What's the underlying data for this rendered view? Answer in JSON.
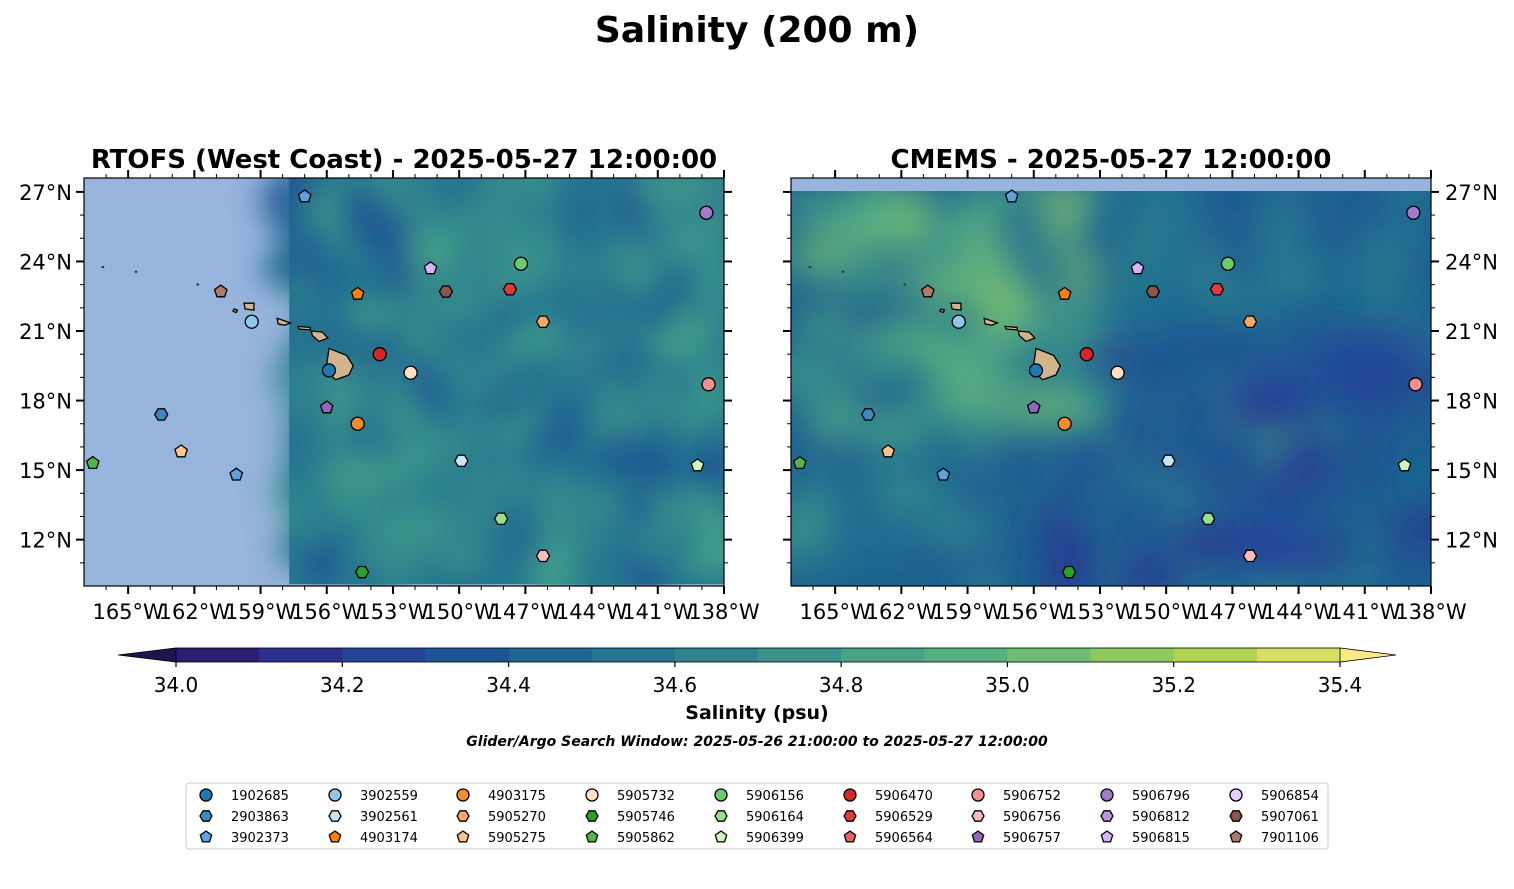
{
  "title": "Salinity (200 m)",
  "panels": [
    {
      "title": "RTOFS (West Coast) - 2025-05-27 12:00:00",
      "coverage_lon_min": -157.7
    },
    {
      "title": "CMEMS - 2025-05-27 12:00:00",
      "coverage_lat_max": 27.0
    }
  ],
  "map": {
    "lon_range": [
      -167,
      -138
    ],
    "lat_range": [
      10,
      27.6
    ],
    "x_ticks": [
      -165,
      -162,
      -159,
      -156,
      -153,
      -150,
      -147,
      -144,
      -141,
      -138
    ],
    "x_tick_labels": [
      "165°W",
      "162°W",
      "159°W",
      "156°W",
      "153°W",
      "150°W",
      "147°W",
      "144°W",
      "141°W",
      "138°W"
    ],
    "y_ticks": [
      27,
      24,
      21,
      18,
      15,
      12
    ],
    "y_tick_labels": [
      "27°N",
      "24°N",
      "21°N",
      "18°N",
      "15°N",
      "12°N"
    ],
    "nodata_color": "#97b4dd",
    "land_color": "#d2b48c"
  },
  "colorbar": {
    "label": "Salinity (psu)",
    "ticks": [
      "34.0",
      "34.2",
      "34.4",
      "34.6",
      "34.8",
      "35.0",
      "35.2",
      "35.4"
    ],
    "min": 34.0,
    "max": 35.4,
    "extend": "both",
    "colors": [
      "#2a1e72",
      "#2b2f91",
      "#24439a",
      "#1c5494",
      "#1d6690",
      "#257590",
      "#30848e",
      "#3b938b",
      "#47a287",
      "#57b080",
      "#70bd73",
      "#8ec960",
      "#b0d352",
      "#d4df63"
    ],
    "under": "#20144f",
    "over": "#fbe987"
  },
  "search_window": "Glider/Argo Search Window: 2025-05-26 21:00:00 to 2025-05-27 12:00:00",
  "legend": [
    {
      "id": "1902685",
      "color": "#1f77b4",
      "marker": "circle"
    },
    {
      "id": "2903863",
      "color": "#3e88c2",
      "marker": "hexagon"
    },
    {
      "id": "3902373",
      "color": "#5ba3df",
      "marker": "pentagon"
    },
    {
      "id": "3902559",
      "color": "#8ec6ec",
      "marker": "circle"
    },
    {
      "id": "3902561",
      "color": "#c9e3f7",
      "marker": "hexagon"
    },
    {
      "id": "4903174",
      "color": "#ff7f0e",
      "marker": "pentagon"
    },
    {
      "id": "4903175",
      "color": "#f28c2d",
      "marker": "circle"
    },
    {
      "id": "5905270",
      "color": "#f5a866",
      "marker": "hexagon"
    },
    {
      "id": "5905275",
      "color": "#fbc48d",
      "marker": "pentagon"
    },
    {
      "id": "5905732",
      "color": "#fde0c5",
      "marker": "circle"
    },
    {
      "id": "5905746",
      "color": "#2ca02c",
      "marker": "hexagon"
    },
    {
      "id": "5905862",
      "color": "#4cb84c",
      "marker": "pentagon"
    },
    {
      "id": "5906156",
      "color": "#6ccb6c",
      "marker": "circle"
    },
    {
      "id": "5906164",
      "color": "#98df8a",
      "marker": "hexagon"
    },
    {
      "id": "5906399",
      "color": "#cdf7c2",
      "marker": "pentagon"
    },
    {
      "id": "5906470",
      "color": "#d62728",
      "marker": "circle"
    },
    {
      "id": "5906529",
      "color": "#e03b3b",
      "marker": "hexagon"
    },
    {
      "id": "5906564",
      "color": "#e86060",
      "marker": "pentagon"
    },
    {
      "id": "5906752",
      "color": "#f29090",
      "marker": "circle"
    },
    {
      "id": "5906756",
      "color": "#f9bcbc",
      "marker": "hexagon"
    },
    {
      "id": "5906757",
      "color": "#9467bd",
      "marker": "pentagon"
    },
    {
      "id": "5906796",
      "color": "#a07acb",
      "marker": "circle"
    },
    {
      "id": "5906812",
      "color": "#b895e0",
      "marker": "hexagon"
    },
    {
      "id": "5906815",
      "color": "#d4b4f5",
      "marker": "pentagon"
    },
    {
      "id": "5906854",
      "color": "#e6ccff",
      "marker": "circle"
    },
    {
      "id": "5907061",
      "color": "#8c564b",
      "marker": "hexagon"
    },
    {
      "id": "7901106",
      "color": "#b07a6a",
      "marker": "pentagon"
    }
  ],
  "floats": [
    {
      "id": "3902373",
      "lon": -157.0,
      "lat": 26.8
    },
    {
      "id": "5906796",
      "lon": -138.8,
      "lat": 26.1
    },
    {
      "id": "5906815",
      "lon": -151.3,
      "lat": 23.7
    },
    {
      "id": "5906156",
      "lon": -147.2,
      "lat": 23.9
    },
    {
      "id": "7901106",
      "lon": -160.8,
      "lat": 22.7
    },
    {
      "id": "4903174",
      "lon": -154.6,
      "lat": 22.6
    },
    {
      "id": "5907061",
      "lon": -150.6,
      "lat": 22.7
    },
    {
      "id": "5906529",
      "lon": -147.7,
      "lat": 22.8
    },
    {
      "id": "3902559",
      "lon": -159.4,
      "lat": 21.4
    },
    {
      "id": "5905270",
      "lon": -146.2,
      "lat": 21.4
    },
    {
      "id": "5906470",
      "lon": -153.6,
      "lat": 20.0
    },
    {
      "id": "1902685",
      "lon": -155.9,
      "lat": 19.3
    },
    {
      "id": "5905732",
      "lon": -152.2,
      "lat": 19.2
    },
    {
      "id": "5906752",
      "lon": -138.7,
      "lat": 18.7
    },
    {
      "id": "5906757",
      "lon": -156.0,
      "lat": 17.7
    },
    {
      "id": "2903863",
      "lon": -163.5,
      "lat": 17.4
    },
    {
      "id": "4903175",
      "lon": -154.6,
      "lat": 17.0
    },
    {
      "id": "5905275",
      "lon": -162.6,
      "lat": 15.8
    },
    {
      "id": "5905862",
      "lon": -166.6,
      "lat": 15.3
    },
    {
      "id": "3902561",
      "lon": -149.9,
      "lat": 15.4
    },
    {
      "id": "5906399",
      "lon": -139.2,
      "lat": 15.2
    },
    {
      "id": "3902373",
      "lon": -160.1,
      "lat": 14.8
    },
    {
      "id": "5906164",
      "lon": -148.1,
      "lat": 12.9
    },
    {
      "id": "5906756",
      "lon": -146.2,
      "lat": 11.3
    },
    {
      "id": "5905746",
      "lon": -154.4,
      "lat": 10.6
    }
  ]
}
